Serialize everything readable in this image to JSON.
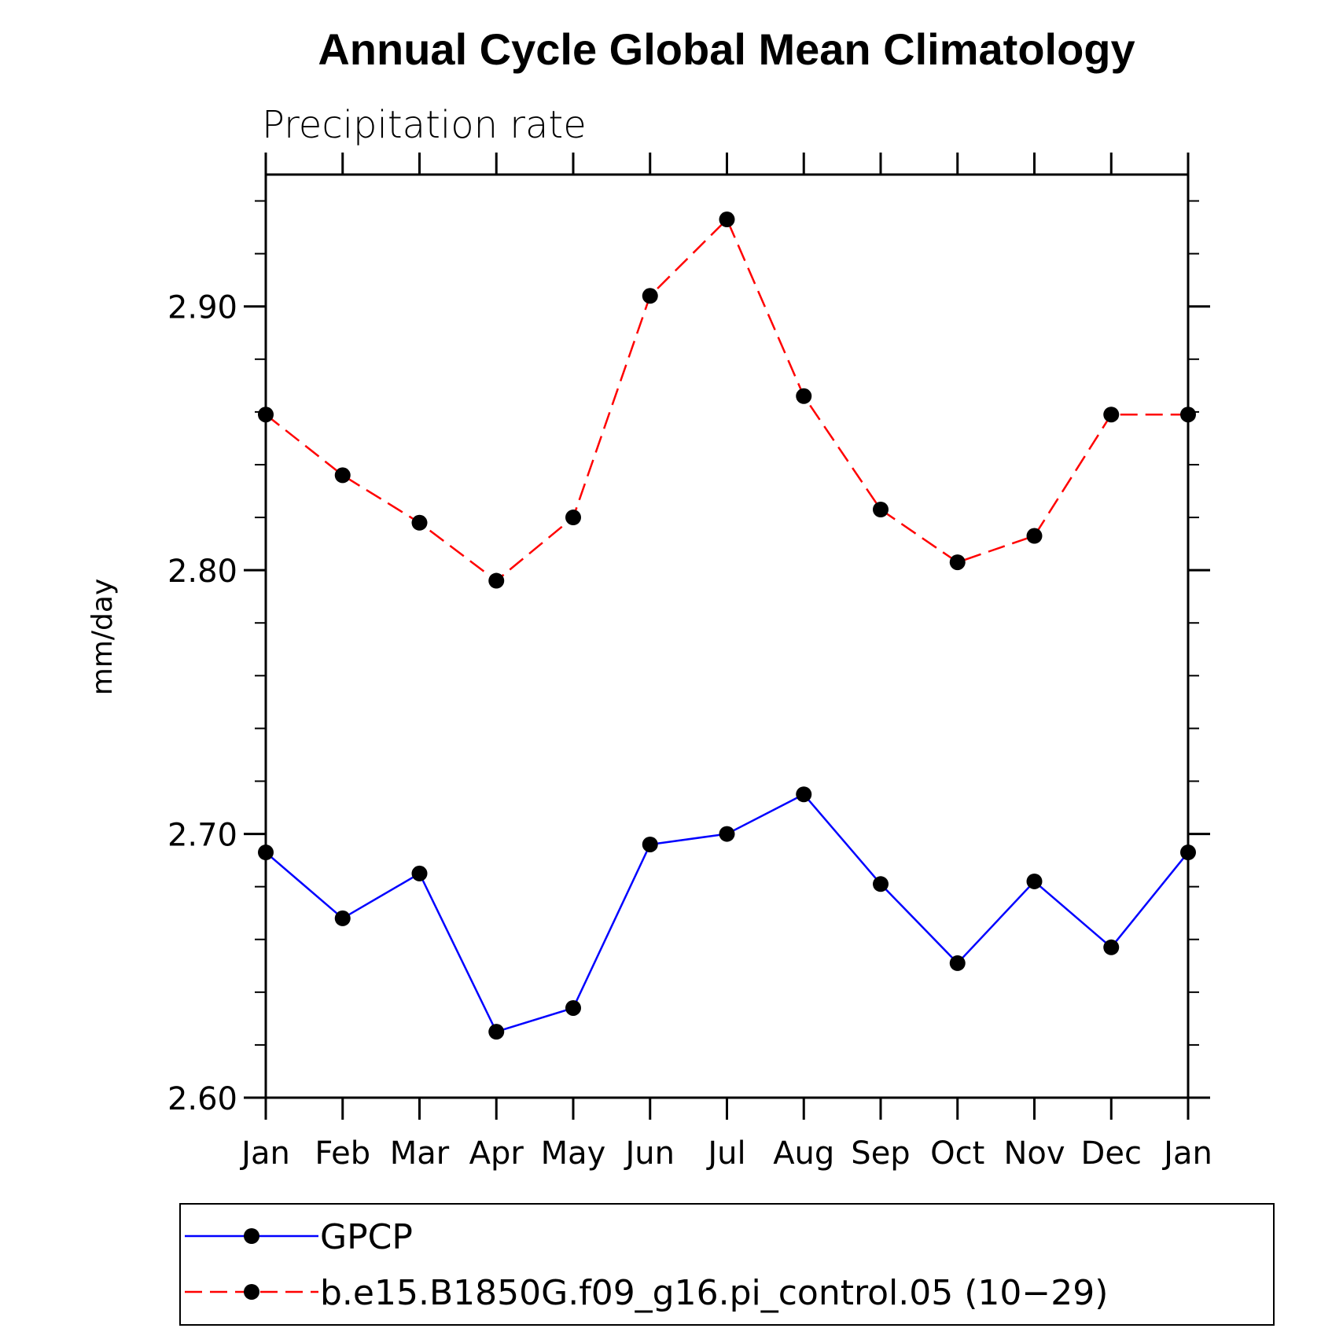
{
  "chart_data": {
    "type": "line",
    "title": "Annual Cycle Global Mean Climatology",
    "subtitle": "Precipitation rate",
    "ylabel": "mm/day",
    "xlabel": "",
    "categories": [
      "Jan",
      "Feb",
      "Mar",
      "Apr",
      "May",
      "Jun",
      "Jul",
      "Aug",
      "Sep",
      "Oct",
      "Nov",
      "Dec",
      "Jan"
    ],
    "ylim": [
      2.6,
      2.95
    ],
    "yticks": [
      "2.60",
      "2.70",
      "2.80",
      "2.90"
    ],
    "series": [
      {
        "name": "GPCP",
        "color": "#0000ff",
        "line_style": "solid",
        "marker": "filled-circle",
        "values": [
          2.693,
          2.668,
          2.685,
          2.625,
          2.634,
          2.696,
          2.7,
          2.715,
          2.681,
          2.651,
          2.682,
          2.657,
          2.693
        ]
      },
      {
        "name": "b.e15.B1850G.f09_g16.pi_control.05 (10−29)",
        "color": "#ff0000",
        "line_style": "dashed",
        "marker": "filled-circle",
        "values": [
          2.859,
          2.836,
          2.818,
          2.796,
          2.82,
          2.904,
          2.933,
          2.866,
          2.823,
          2.803,
          2.813,
          2.859,
          2.859
        ]
      }
    ],
    "legend_position": "bottom",
    "grid": false
  }
}
